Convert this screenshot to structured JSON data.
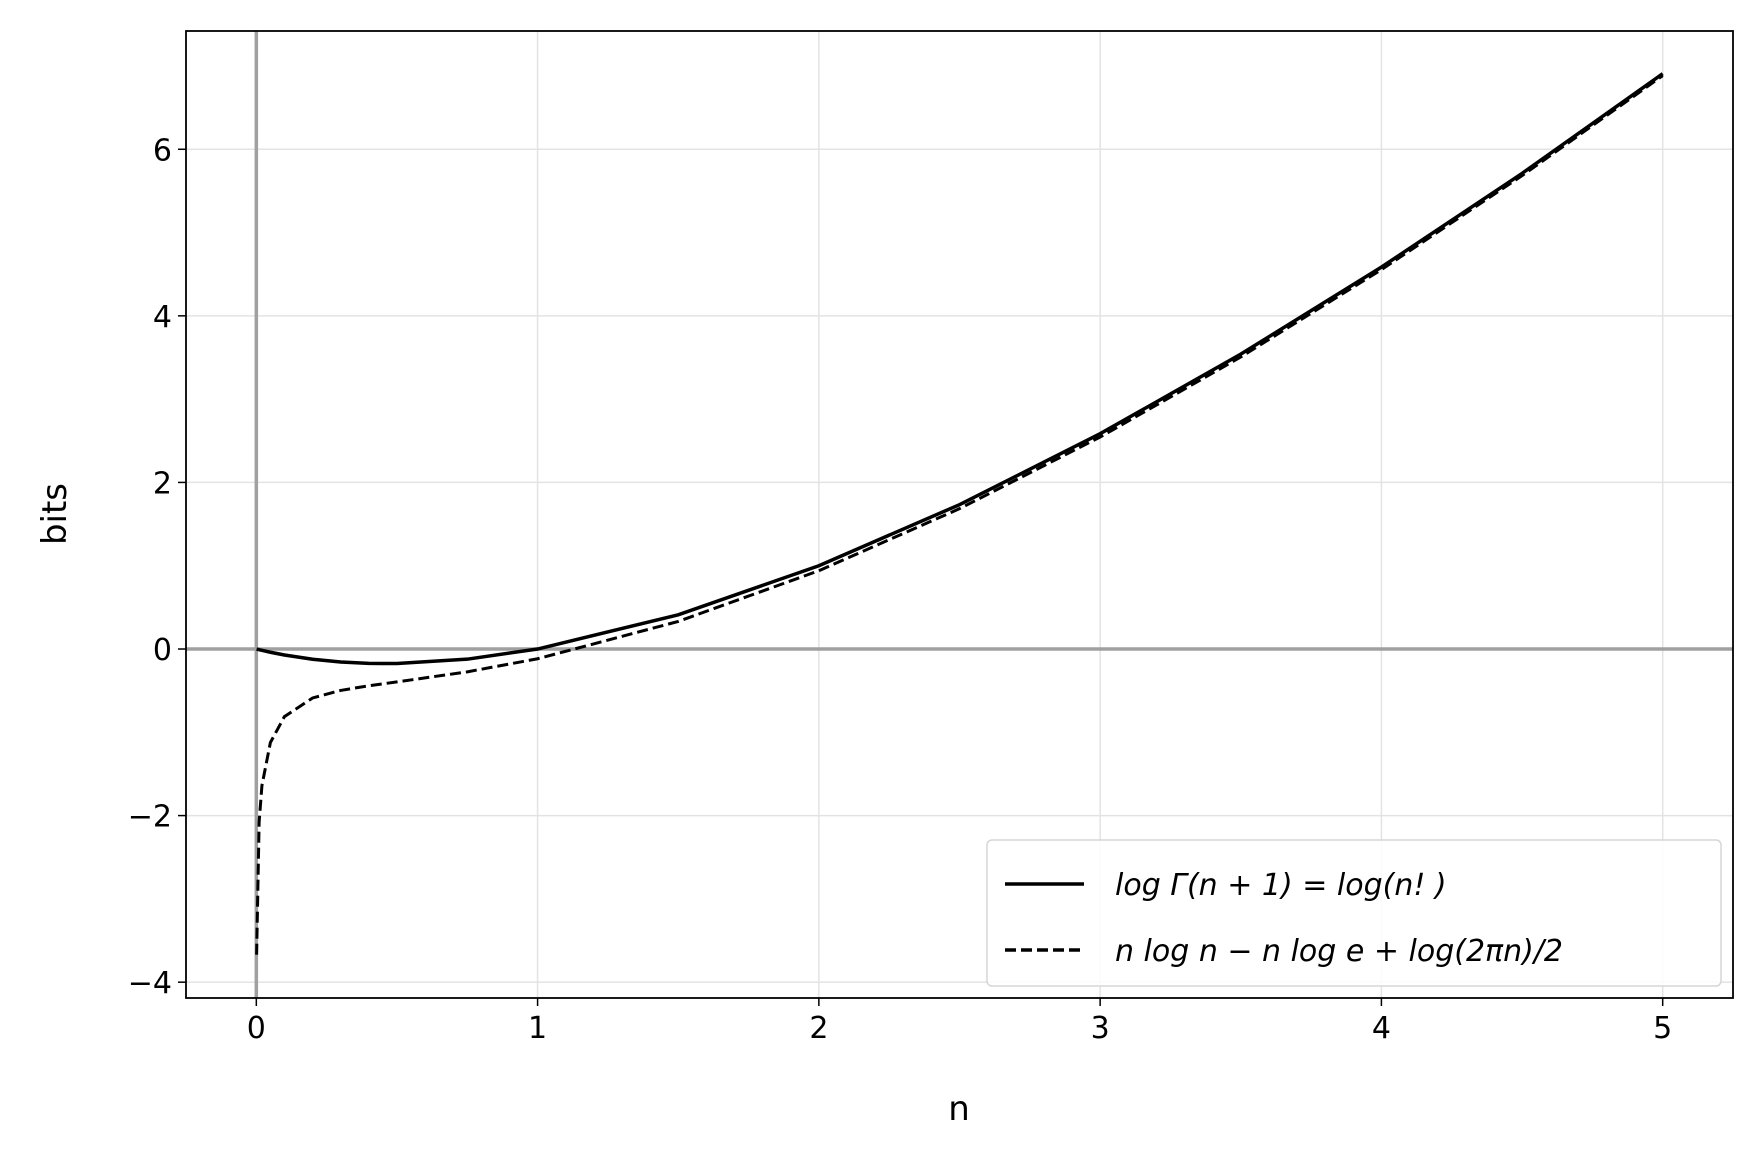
{
  "chart_data": {
    "type": "line",
    "xlabel": "n",
    "ylabel": "bits",
    "x": [
      0.001,
      0.01,
      0.02,
      0.05,
      0.1,
      0.2,
      0.3,
      0.4,
      0.5,
      0.75,
      1,
      1.5,
      2,
      2.5,
      3,
      3.5,
      4,
      4.5,
      5
    ],
    "series": [
      {
        "name": "log Γ(n + 1)  =  log(n! )",
        "color": "#000000",
        "dash": "solid",
        "values": [
          0,
          -0.008,
          -0.016,
          -0.039,
          -0.072,
          -0.123,
          -0.156,
          -0.173,
          -0.174,
          -0.122,
          0,
          0.411,
          1,
          1.733,
          2.585,
          3.54,
          4.585,
          5.71,
          6.907
        ]
      },
      {
        "name": "n log n − n log e + log(2πn)/2",
        "color": "#000000",
        "dash": "dashed",
        "values": [
          -3.67,
          -2.077,
          -1.638,
          -1.123,
          -0.811,
          -0.588,
          -0.497,
          -0.441,
          -0.395,
          -0.274,
          -0.117,
          0.331,
          0.94,
          1.685,
          2.545,
          3.506,
          4.555,
          5.683,
          6.884
        ]
      }
    ],
    "xlim": [
      -0.25,
      5.25
    ],
    "ylim": [
      -4.19,
      7.42
    ],
    "xticks": [
      0,
      1,
      2,
      3,
      4,
      5
    ],
    "yticks": [
      {
        "value": -4,
        "label": "−4"
      },
      {
        "value": -2,
        "label": "−2"
      },
      0,
      2,
      4,
      6
    ],
    "grid": true,
    "legend": "lower right"
  }
}
